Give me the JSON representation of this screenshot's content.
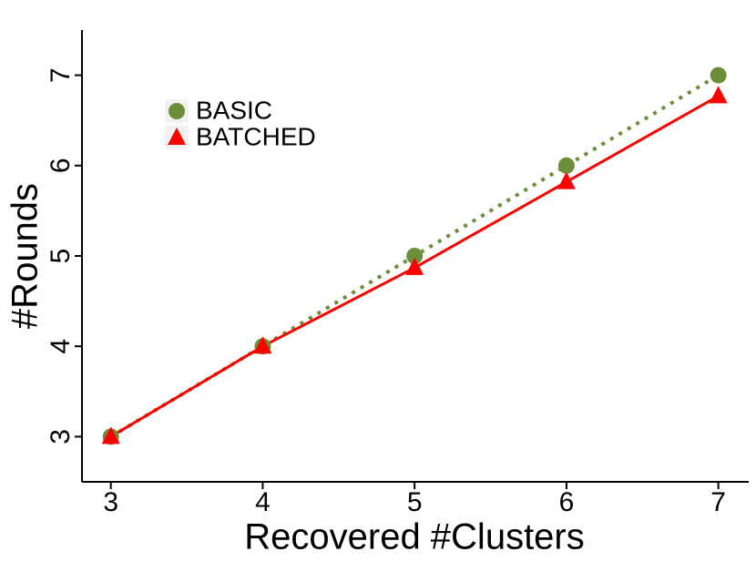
{
  "chart_data": {
    "type": "line",
    "x_label": "Recovered #Clusters",
    "y_label": "#Rounds",
    "x": [
      3,
      4,
      5,
      6,
      7
    ],
    "series": [
      {
        "name": "BASIC",
        "color": "#6b8e3a",
        "linestyle": "dotted",
        "marker": "circle",
        "values": [
          3,
          4,
          5,
          6,
          7
        ]
      },
      {
        "name": "BATCHED",
        "color": "#ff0000",
        "linestyle": "solid",
        "marker": "triangle",
        "values": [
          3,
          4,
          4.87,
          5.82,
          6.77
        ]
      }
    ],
    "xlim": [
      2.81,
      7.2
    ],
    "xticks": [
      3,
      4,
      5,
      6,
      7
    ],
    "ylim": [
      2.5,
      7.5
    ],
    "yticks": [
      3,
      4,
      5,
      6,
      7
    ],
    "grid": false,
    "legend": "top-left"
  }
}
